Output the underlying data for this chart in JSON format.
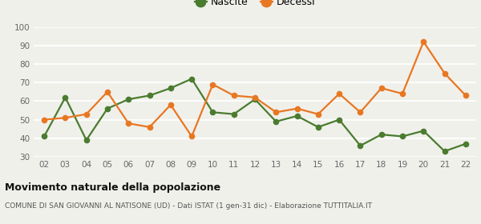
{
  "years": [
    "02",
    "03",
    "04",
    "05",
    "06",
    "07",
    "08",
    "09",
    "10",
    "11",
    "12",
    "13",
    "14",
    "15",
    "16",
    "17",
    "18",
    "19",
    "20",
    "21",
    "22"
  ],
  "nascite": [
    41,
    62,
    39,
    56,
    61,
    63,
    67,
    72,
    54,
    53,
    61,
    49,
    52,
    46,
    50,
    36,
    42,
    41,
    44,
    33,
    37
  ],
  "decessi": [
    50,
    51,
    53,
    65,
    48,
    46,
    58,
    41,
    69,
    63,
    62,
    54,
    56,
    53,
    64,
    54,
    67,
    64,
    92,
    75,
    63
  ],
  "nascite_color": "#4a7c2f",
  "decessi_color": "#e87722",
  "bg_color": "#f0f0eb",
  "grid_color": "#ffffff",
  "ylim": [
    30,
    100
  ],
  "yticks": [
    30,
    40,
    50,
    60,
    70,
    80,
    90,
    100
  ],
  "title": "Movimento naturale della popolazione",
  "subtitle": "COMUNE DI SAN GIOVANNI AL NATISONE (UD) - Dati ISTAT (1 gen-31 dic) - Elaborazione TUTTITALIA.IT",
  "legend_nascite": "Nascite",
  "legend_decessi": "Decessi",
  "marker_size": 4.5,
  "line_width": 1.6
}
